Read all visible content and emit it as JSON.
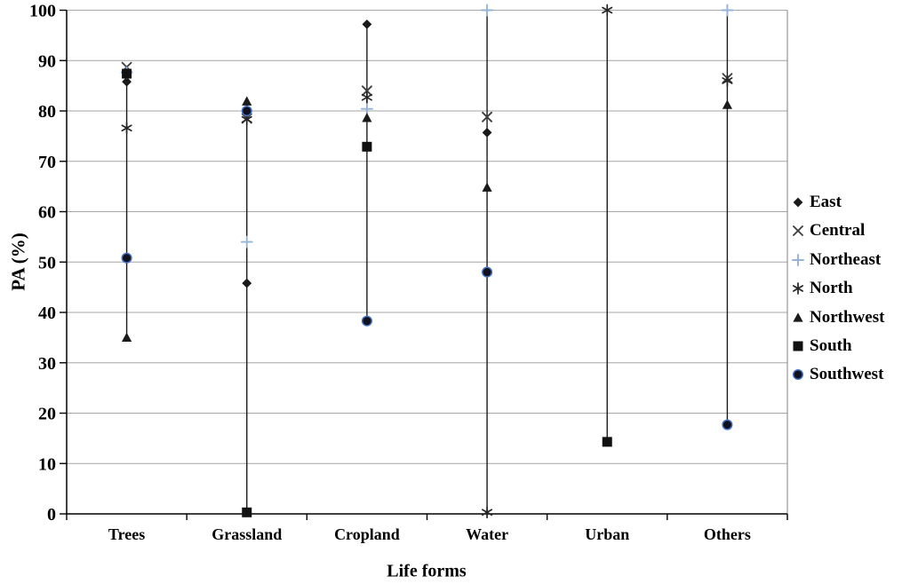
{
  "chart_data": {
    "type": "scatter",
    "title": "",
    "xlabel": "Life forms",
    "ylabel": "PA (%)",
    "ylim": [
      0,
      100
    ],
    "yticks": [
      0,
      10,
      20,
      30,
      40,
      50,
      60,
      70,
      80,
      90,
      100
    ],
    "grid": "horizontal-gray-lines",
    "legend_position": "right-outside",
    "range_lines": "vertical high-low line per category",
    "categories": [
      "Trees",
      "Grassland",
      "Cropland",
      "Water",
      "Urban",
      "Others"
    ],
    "series": [
      {
        "name": "East",
        "marker": "diamond",
        "color": "#1a1a1a",
        "values": [
          85.8,
          45.8,
          97.2,
          75.7,
          null,
          null
        ]
      },
      {
        "name": "Central",
        "marker": "x",
        "color": "#3f3f3f",
        "values": [
          88.7,
          78.5,
          84.0,
          78.8,
          null,
          86.5
        ]
      },
      {
        "name": "Northeast",
        "marker": "plus",
        "color": "#95b3d7",
        "values": [
          87.6,
          54.0,
          80.4,
          100,
          null,
          100
        ]
      },
      {
        "name": "North",
        "marker": "asterisk",
        "color": "#262626",
        "values": [
          76.6,
          78.3,
          82.7,
          0.3,
          100,
          86.0
        ]
      },
      {
        "name": "Northwest",
        "marker": "triangle",
        "color": "#1a1a1a",
        "values": [
          35.0,
          81.9,
          78.6,
          64.8,
          null,
          81.2
        ]
      },
      {
        "name": "South",
        "marker": "square",
        "color": "#111111",
        "values": [
          87.4,
          0.3,
          72.9,
          null,
          14.3,
          null
        ]
      },
      {
        "name": "Southwest",
        "marker": "circle",
        "color": "#10101e",
        "marker_stroke": "#4472c4",
        "values": [
          50.8,
          80.0,
          38.3,
          48.0,
          null,
          17.7
        ]
      }
    ],
    "colors": {
      "grid_line": "#a6a6a6",
      "axis_line": "#000000",
      "plot_right_border": "#808080",
      "range_line": "#1a1a1a",
      "text": "#000000",
      "northeast_accent": "#95b3d7"
    }
  }
}
